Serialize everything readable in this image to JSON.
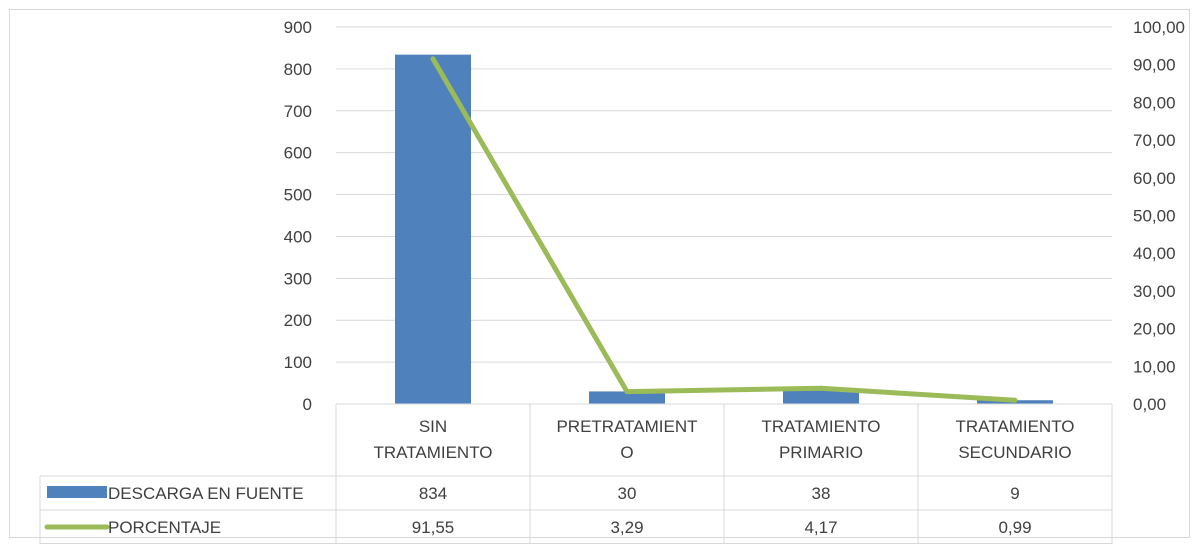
{
  "chart_data": {
    "type": "bar",
    "categories": [
      [
        "SIN",
        "TRATAMIENTO"
      ],
      [
        "PRETRATAMIENT",
        "O"
      ],
      [
        "TRATAMIENTO",
        "PRIMARIO"
      ],
      [
        "TRATAMIENTO",
        "SECUNDARIO"
      ]
    ],
    "series": [
      {
        "name": "DESCARGA EN FUENTE",
        "kind": "bar",
        "axis": "left",
        "color": "#4f81bd",
        "values": [
          834,
          30,
          38,
          9
        ],
        "labels": [
          "834",
          "30",
          "38",
          "9"
        ]
      },
      {
        "name": "PORCENTAJE",
        "kind": "line",
        "axis": "right",
        "color": "#9bbb59",
        "values": [
          91.55,
          3.29,
          4.17,
          0.99
        ],
        "labels": [
          "91,55",
          "3,29",
          "4,17",
          "0,99"
        ]
      }
    ],
    "y_left": {
      "min": 0,
      "max": 900,
      "step": 100,
      "ticks": [
        "0",
        "100",
        "200",
        "300",
        "400",
        "500",
        "600",
        "700",
        "800",
        "900"
      ]
    },
    "y_right": {
      "min": 0,
      "max": 100,
      "step": 10,
      "ticks": [
        "0,00",
        "10,00",
        "20,00",
        "30,00",
        "40,00",
        "50,00",
        "60,00",
        "70,00",
        "80,00",
        "90,00",
        "100,00"
      ]
    },
    "grid": true,
    "data_table": true,
    "colors": {
      "grid": "#d9d9d9",
      "text": "#404040"
    }
  }
}
